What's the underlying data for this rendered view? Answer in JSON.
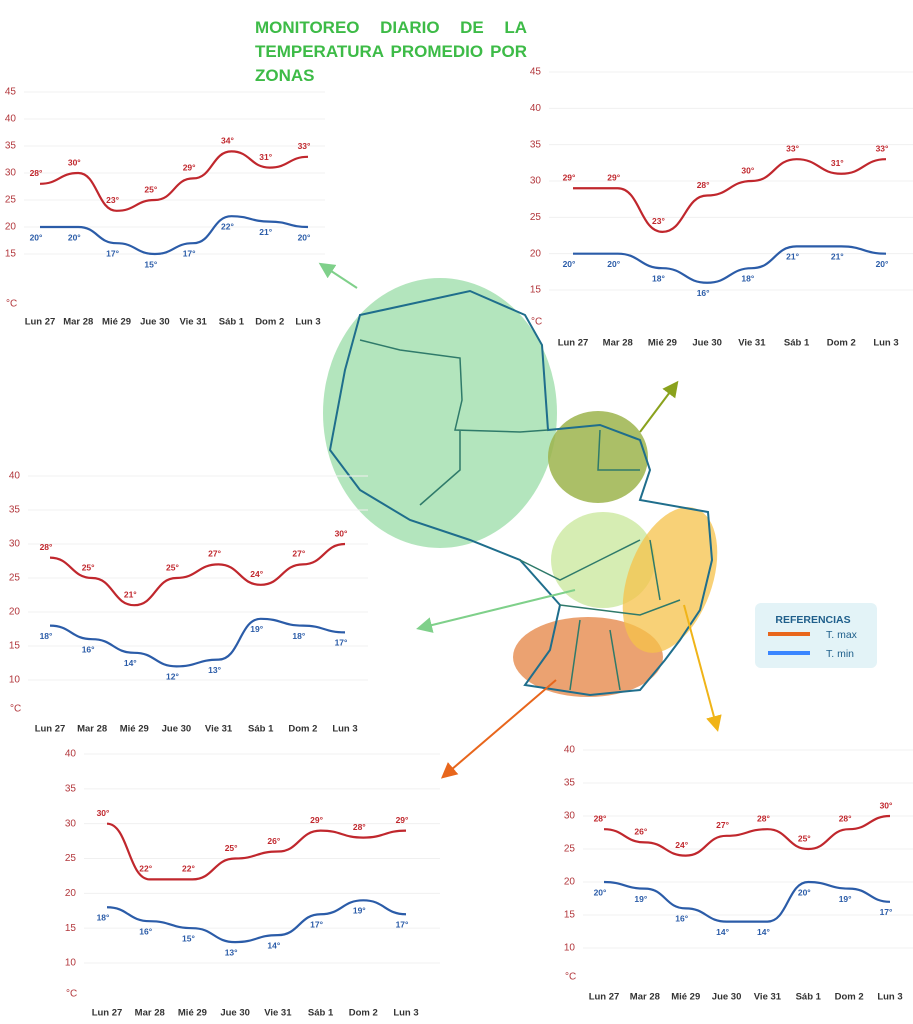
{
  "title": "MONITOREO DIARIO DE LA TEMPERATURA PROMEDIO POR ZONAS",
  "legend": {
    "title": "REFERENCIAS",
    "items": [
      {
        "name": "T. max",
        "color": "#e8661c"
      },
      {
        "name": "T. min",
        "color": "#3a86ff"
      }
    ]
  },
  "chart_data": [
    {
      "type": "line",
      "y_unit": "°C",
      "categories": [
        "Lun 27",
        "Mar 28",
        "Mié 29",
        "Jue 30",
        "Vie 31",
        "Sáb 1",
        "Dom 2",
        "Lun 3"
      ],
      "ylim": [
        15,
        45
      ],
      "yticks": [
        15,
        20,
        25,
        30,
        35,
        40,
        45
      ],
      "grid": true,
      "series": [
        {
          "color": "#c0272d",
          "values": [
            28,
            30,
            23,
            25,
            29,
            34,
            31,
            33
          ],
          "value_labels": [
            "28°",
            "30°",
            "23°",
            "25°",
            "29°",
            "34°",
            "31°",
            "33°"
          ]
        },
        {
          "color": "#2b5ca8",
          "values": [
            20,
            20,
            17,
            15,
            17,
            22,
            21,
            20
          ],
          "value_labels": [
            "20°",
            "20°",
            "17°",
            "15°",
            "17°",
            "22°",
            "21°",
            "20°"
          ]
        }
      ]
    },
    {
      "type": "line",
      "y_unit": "°C",
      "categories": [
        "Lun 27",
        "Mar 28",
        "Mié 29",
        "Jue 30",
        "Vie 31",
        "Sáb 1",
        "Dom 2",
        "Lun 3"
      ],
      "ylim": [
        15,
        45
      ],
      "yticks": [
        15,
        20,
        25,
        30,
        35,
        40,
        45
      ],
      "grid": true,
      "series": [
        {
          "color": "#c0272d",
          "values": [
            29,
            29,
            23,
            28,
            30,
            33,
            31,
            33
          ],
          "value_labels": [
            "29°",
            "29°",
            "23°",
            "28°",
            "30°",
            "33°",
            "31°",
            "33°"
          ]
        },
        {
          "color": "#2b5ca8",
          "values": [
            20,
            20,
            18,
            16,
            18,
            21,
            21,
            20
          ],
          "value_labels": [
            "20°",
            "20°",
            "18°",
            "16°",
            "18°",
            "21°",
            "21°",
            "20°"
          ]
        }
      ]
    },
    {
      "type": "line",
      "y_unit": "°C",
      "categories": [
        "Lun 27",
        "Mar 28",
        "Mié 29",
        "Jue 30",
        "Vie 31",
        "Sáb 1",
        "Dom 2",
        "Lun 3"
      ],
      "ylim": [
        10,
        40
      ],
      "yticks": [
        10,
        15,
        20,
        25,
        30,
        35,
        40
      ],
      "grid": true,
      "series": [
        {
          "color": "#c0272d",
          "values": [
            28,
            25,
            21,
            25,
            27,
            24,
            27,
            30
          ],
          "value_labels": [
            "28°",
            "25°",
            "21°",
            "25°",
            "27°",
            "24°",
            "27°",
            "30°"
          ]
        },
        {
          "color": "#2b5ca8",
          "values": [
            18,
            16,
            14,
            12,
            13,
            19,
            18,
            17
          ],
          "value_labels": [
            "18°",
            "16°",
            "14°",
            "12°",
            "13°",
            "19°",
            "18°",
            "17°"
          ]
        }
      ]
    },
    {
      "type": "line",
      "y_unit": "°C",
      "categories": [
        "Lun 27",
        "Mar 28",
        "Mié 29",
        "Jue 30",
        "Vie 31",
        "Sáb 1",
        "Dom 2",
        "Lun 3"
      ],
      "ylim": [
        10,
        40
      ],
      "yticks": [
        10,
        15,
        20,
        25,
        30,
        35,
        40
      ],
      "grid": true,
      "series": [
        {
          "color": "#c0272d",
          "values": [
            30,
            22,
            22,
            25,
            26,
            29,
            28,
            29
          ],
          "value_labels": [
            "30°",
            "22°",
            "22°",
            "25°",
            "26°",
            "29°",
            "28°",
            "29°"
          ]
        },
        {
          "color": "#2b5ca8",
          "values": [
            18,
            16,
            15,
            13,
            14,
            17,
            19,
            17
          ],
          "value_labels": [
            "18°",
            "16°",
            "15°",
            "13°",
            "14°",
            "17°",
            "19°",
            "17°"
          ]
        }
      ]
    },
    {
      "type": "line",
      "y_unit": "°C",
      "categories": [
        "Lun 27",
        "Mar 28",
        "Mié 29",
        "Jue 30",
        "Vie 31",
        "Sáb 1",
        "Dom 2",
        "Lun 3"
      ],
      "ylim": [
        10,
        40
      ],
      "yticks": [
        10,
        15,
        20,
        25,
        30,
        35,
        40
      ],
      "grid": true,
      "series": [
        {
          "color": "#c0272d",
          "values": [
            28,
            26,
            24,
            27,
            28,
            25,
            28,
            30
          ],
          "value_labels": [
            "28°",
            "26°",
            "24°",
            "27°",
            "28°",
            "25°",
            "28°",
            "30°"
          ]
        },
        {
          "color": "#2b5ca8",
          "values": [
            20,
            19,
            16,
            14,
            14,
            20,
            19,
            17
          ],
          "value_labels": [
            "20°",
            "19°",
            "16°",
            "14°",
            "14°",
            "20°",
            "19°",
            "17°"
          ]
        }
      ]
    }
  ]
}
